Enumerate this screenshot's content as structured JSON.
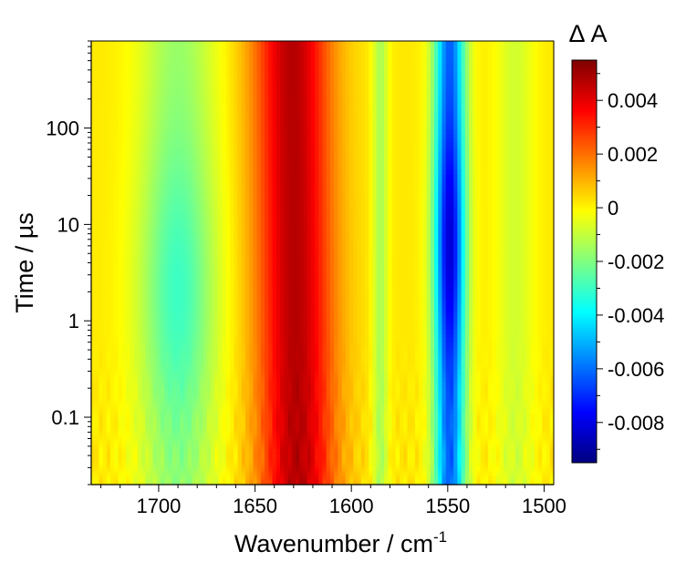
{
  "chart_data": {
    "type": "heatmap",
    "xlabel": "Wavenumber / cm",
    "xlabel_sup": "-1",
    "ylabel": "Time / µs",
    "colorbar_title": "Δ A",
    "x_range": [
      1735,
      1495
    ],
    "x_reversed": true,
    "y_range": [
      0.02,
      800
    ],
    "y_scale": "log",
    "x_ticks": [
      {
        "value": 1700,
        "label": "1700"
      },
      {
        "value": 1650,
        "label": "1650"
      },
      {
        "value": 1600,
        "label": "1600"
      },
      {
        "value": 1550,
        "label": "1550"
      },
      {
        "value": 1500,
        "label": "1500"
      }
    ],
    "y_ticks": [
      {
        "value": 0.1,
        "label": "0.1"
      },
      {
        "value": 1,
        "label": "1"
      },
      {
        "value": 10,
        "label": "10"
      },
      {
        "value": 100,
        "label": "100"
      }
    ],
    "colorbar_range": [
      -0.0095,
      0.0055
    ],
    "colorbar_ticks": [
      {
        "value": 0.004,
        "label": "0.004"
      },
      {
        "value": 0.002,
        "label": "0.002"
      },
      {
        "value": 0,
        "label": "0"
      },
      {
        "value": -0.002,
        "label": "-0.002"
      },
      {
        "value": -0.004,
        "label": "-0.004"
      },
      {
        "value": -0.006,
        "label": "-0.006"
      },
      {
        "value": -0.008,
        "label": "-0.008"
      }
    ],
    "colormap": [
      "#00007f",
      "#0000ff",
      "#0080ff",
      "#00ffff",
      "#80ff80",
      "#ffff00",
      "#ff8000",
      "#ff0000",
      "#7f0000"
    ],
    "bands": [
      {
        "center": 1690,
        "width": 20,
        "amplitude": -0.0032
      },
      {
        "center": 1628,
        "width": 20,
        "amplitude": 0.0045
      },
      {
        "center": 1585,
        "width": 4,
        "amplitude": -0.0016
      },
      {
        "center": 1549,
        "width": 8,
        "amplitude": -0.0085
      },
      {
        "center": 1515,
        "width": 10,
        "amplitude": -0.001
      }
    ]
  }
}
